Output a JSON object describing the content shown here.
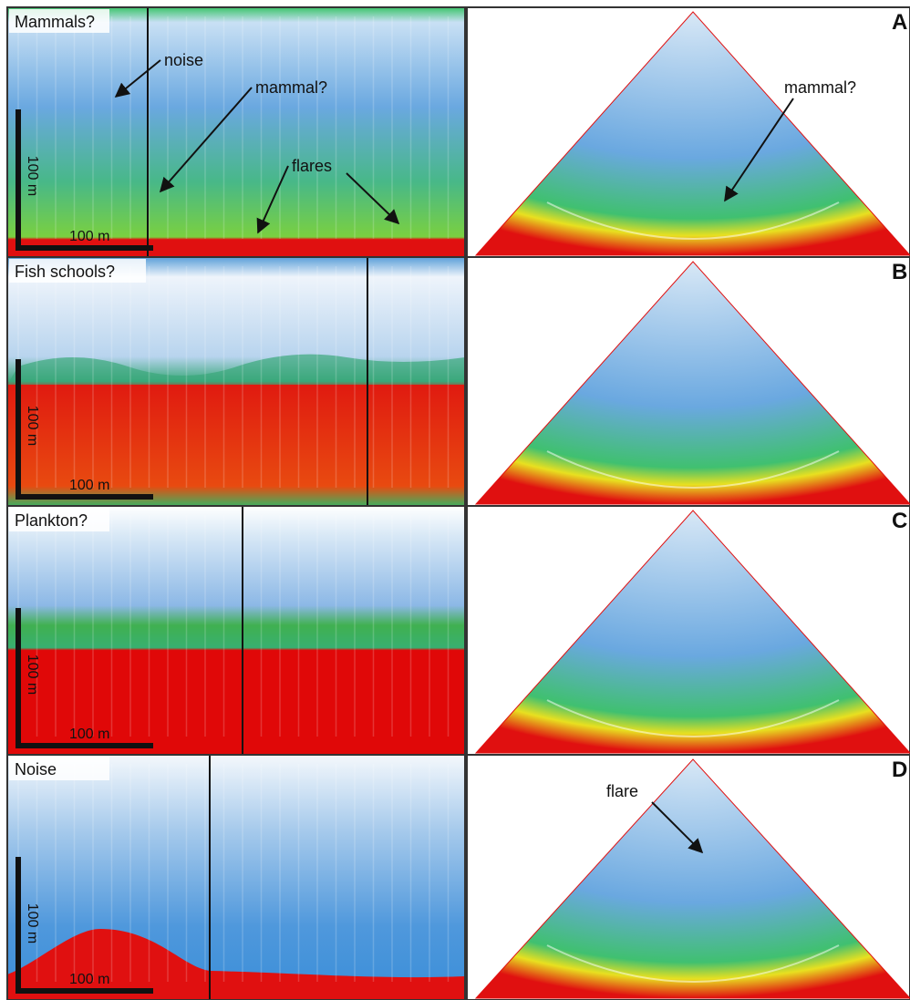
{
  "panels": [
    {
      "letter": "A",
      "label": "Mammals?",
      "scale_vertical": "100 m",
      "scale_horizontal": "100 m",
      "annotations": [
        "noise",
        "mammal?",
        "flares"
      ],
      "fan_annotations": [
        "mammal?"
      ]
    },
    {
      "letter": "B",
      "label": "Fish schools?",
      "scale_vertical": "100 m",
      "scale_horizontal": "100 m",
      "annotations": [],
      "fan_annotations": []
    },
    {
      "letter": "C",
      "label": "Plankton?",
      "scale_vertical": "100 m",
      "scale_horizontal": "100 m",
      "annotations": [],
      "fan_annotations": []
    },
    {
      "letter": "D",
      "label": "Noise",
      "scale_vertical": "100 m",
      "scale_horizontal": "100 m",
      "annotations": [],
      "fan_annotations": [
        "flare"
      ]
    }
  ]
}
